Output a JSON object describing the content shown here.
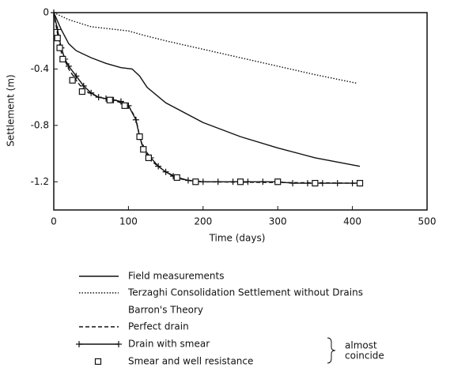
{
  "chart_data": {
    "type": "line",
    "xlabel": "Time (days)",
    "ylabel": "Settlement (m)",
    "xlim": [
      0,
      500
    ],
    "xticks": [
      0,
      100,
      200,
      300,
      400,
      500
    ],
    "ylim": [
      -1.4,
      0
    ],
    "yticks": [
      0,
      -0.4,
      -0.8,
      -1.2
    ],
    "legend_heading": "Barron's Theory",
    "annotation": [
      "almost",
      "coincide"
    ],
    "color": "#111111",
    "series": [
      {
        "name": "Field measurements",
        "dash": "solid",
        "marker": "none",
        "x": [
          0,
          10,
          20,
          30,
          50,
          70,
          90,
          105,
          115,
          125,
          150,
          200,
          250,
          300,
          350,
          410
        ],
        "values": [
          0,
          -0.12,
          -0.22,
          -0.27,
          -0.32,
          -0.36,
          -0.39,
          -0.4,
          -0.45,
          -0.53,
          -0.64,
          -0.78,
          -0.88,
          -0.96,
          -1.03,
          -1.09
        ]
      },
      {
        "name": "Terzaghi Consolidation Settlement without Drains",
        "dash": "dotted",
        "marker": "none",
        "x": [
          0,
          20,
          50,
          100,
          120,
          150,
          200,
          250,
          300,
          350,
          405
        ],
        "values": [
          0,
          -0.05,
          -0.1,
          -0.13,
          -0.16,
          -0.2,
          -0.26,
          -0.32,
          -0.38,
          -0.44,
          -0.5
        ]
      },
      {
        "name": "Perfect drain",
        "dash": "dashed",
        "marker": "none",
        "x": [
          0,
          5,
          10,
          20,
          30,
          40,
          60,
          80,
          100,
          110,
          115,
          120,
          130,
          150,
          170,
          190,
          410
        ],
        "values": [
          0,
          -0.15,
          -0.28,
          -0.4,
          -0.48,
          -0.55,
          -0.6,
          -0.62,
          -0.66,
          -0.75,
          -0.88,
          -0.97,
          -1.05,
          -1.13,
          -1.18,
          -1.2,
          -1.21
        ]
      },
      {
        "name": "Drain with smear",
        "dash": "solid",
        "marker": "plus",
        "x": [
          0,
          5,
          10,
          15,
          20,
          30,
          40,
          50,
          60,
          70,
          80,
          90,
          100,
          110,
          115,
          120,
          130,
          140,
          150,
          160,
          180,
          200,
          220,
          240,
          260,
          280,
          300,
          320,
          340,
          360,
          380,
          400,
          410
        ],
        "values": [
          0,
          -0.12,
          -0.25,
          -0.33,
          -0.38,
          -0.45,
          -0.52,
          -0.57,
          -0.6,
          -0.61,
          -0.62,
          -0.63,
          -0.66,
          -0.76,
          -0.88,
          -0.96,
          -1.03,
          -1.09,
          -1.13,
          -1.16,
          -1.19,
          -1.2,
          -1.2,
          -1.2,
          -1.2,
          -1.2,
          -1.2,
          -1.21,
          -1.21,
          -1.21,
          -1.21,
          -1.21,
          -1.21
        ]
      },
      {
        "name": "Smear and well resistance",
        "dash": "none",
        "marker": "square",
        "x": [
          5,
          8,
          12,
          25,
          38,
          75,
          95,
          115,
          120,
          127,
          165,
          190,
          250,
          300,
          350,
          410
        ],
        "values": [
          -0.18,
          -0.25,
          -0.33,
          -0.48,
          -0.56,
          -0.62,
          -0.66,
          -0.88,
          -0.97,
          -1.03,
          -1.17,
          -1.2,
          -1.2,
          -1.2,
          -1.21,
          -1.21
        ]
      }
    ]
  }
}
